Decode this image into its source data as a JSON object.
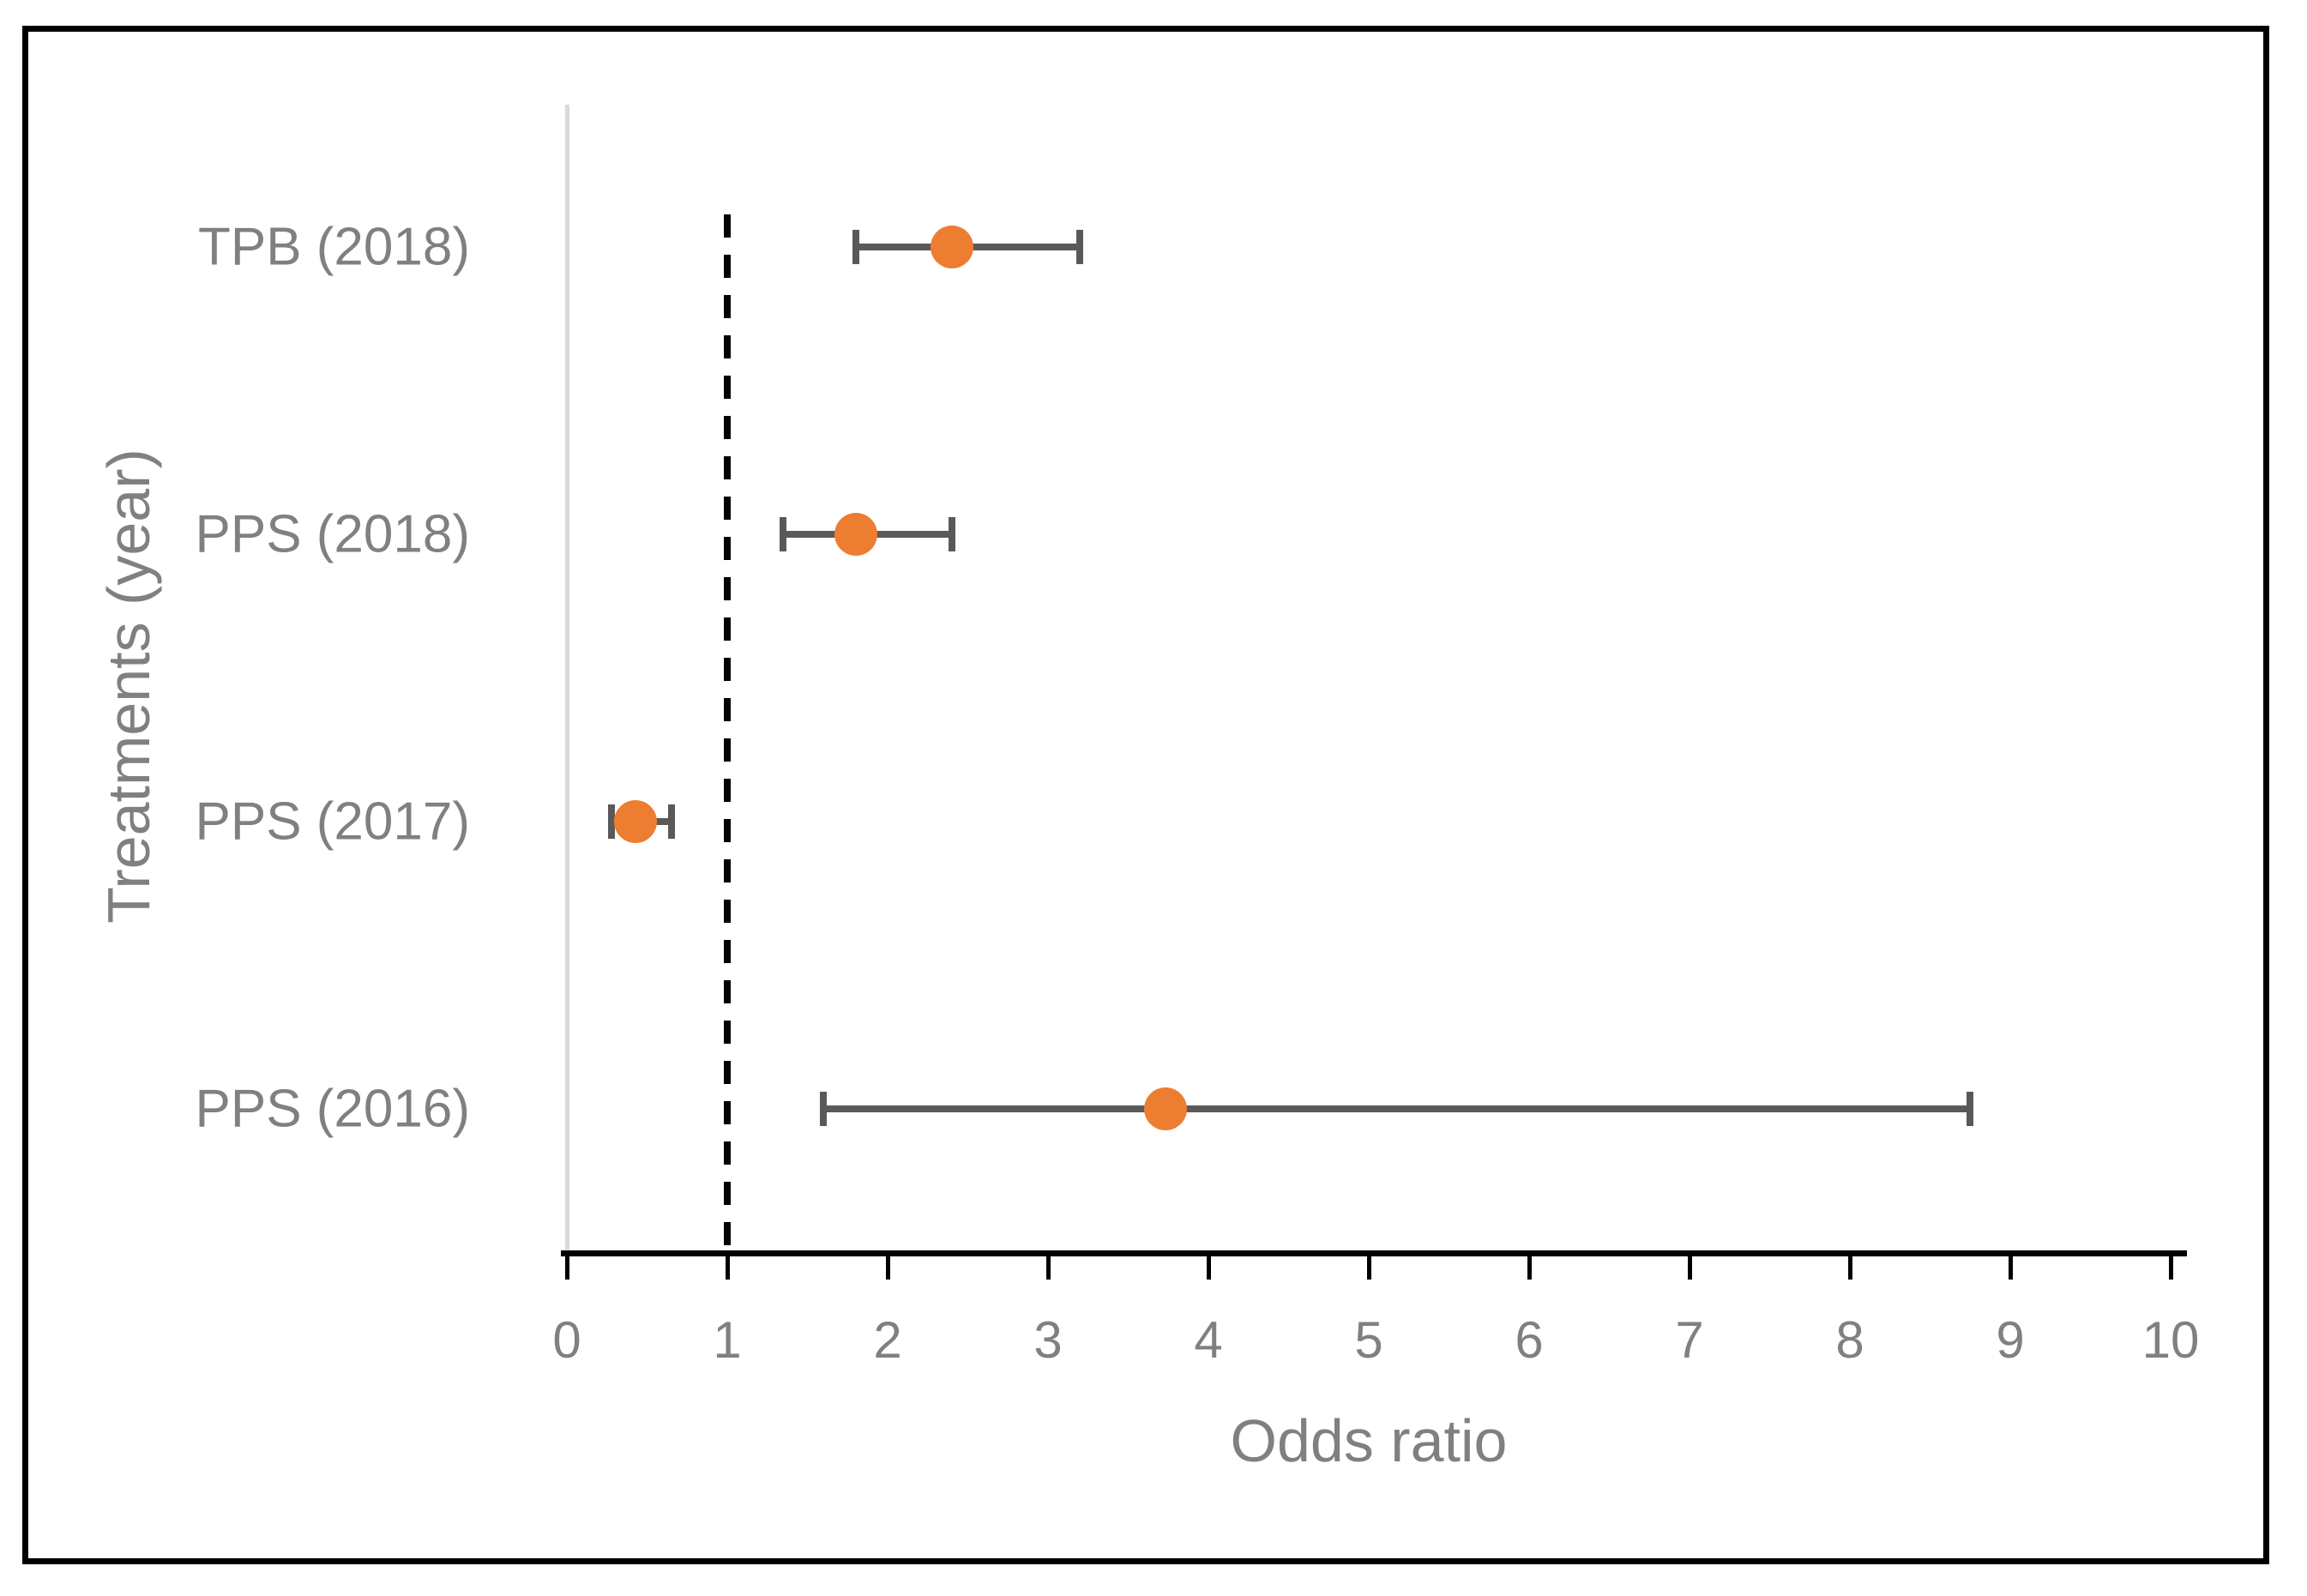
{
  "chart_data": {
    "type": "scatter",
    "subtype": "forest-plot-horizontal-error-bars",
    "title": "",
    "xlabel": "Odds ratio",
    "ylabel": "Treatments (year)",
    "xlim": [
      0,
      10.4
    ],
    "x_ticks": [
      0,
      1,
      2,
      3,
      4,
      5,
      6,
      7,
      8,
      9,
      10
    ],
    "grid": "off",
    "legend": "none",
    "reference_line_x": 1,
    "zero_gridline_x": 0,
    "rows": [
      {
        "label": "TPB (2018)",
        "odds_ratio": 2.4,
        "ci_low": 1.8,
        "ci_high": 3.2
      },
      {
        "label": "PPS (2018)",
        "odds_ratio": 1.8,
        "ci_low": 1.35,
        "ci_high": 2.4
      },
      {
        "label": "PPS (2017)",
        "odds_ratio": 0.43,
        "ci_low": 0.28,
        "ci_high": 0.65
      },
      {
        "label": "PPS (2016)",
        "odds_ratio": 3.73,
        "ci_low": 1.6,
        "ci_high": 8.75
      }
    ],
    "colors": {
      "marker": "#ED7D31",
      "error_bar": "#595959",
      "axis_line": "#000000",
      "reference_line": "#000000",
      "zero_gridline": "#D9D9D9",
      "text": "#808080"
    }
  }
}
